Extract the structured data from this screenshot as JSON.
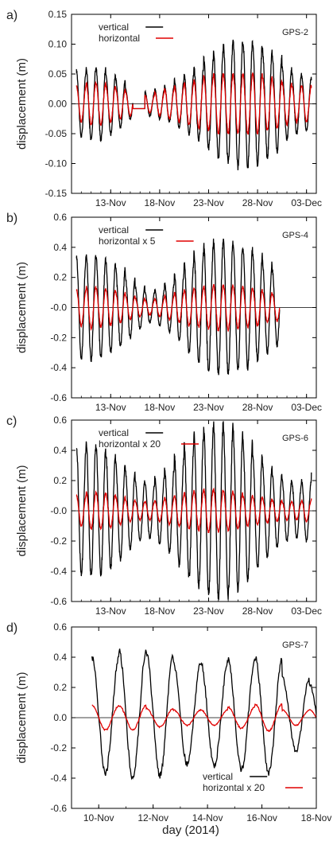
{
  "figure": {
    "xlabel": "day (2014)"
  },
  "chart_data": [
    {
      "type": "line",
      "panel_label": "a)",
      "station": "GPS-2",
      "ylabel": "displacement (m)",
      "ylim": [
        -0.15,
        0.15
      ],
      "yticks": [
        -0.15,
        -0.1,
        -0.05,
        0.0,
        0.05,
        0.1,
        0.15
      ],
      "ytick_labels": [
        "-0.15",
        "-0.10",
        "-0.05",
        "0.00",
        "0.05",
        "0.10",
        "0.15"
      ],
      "xlim": [
        "2014-11-09",
        "2014-12-04"
      ],
      "xticks": [
        "13-Nov",
        "18-Nov",
        "23-Nov",
        "28-Nov",
        "03-Dec"
      ],
      "legend": "top-left",
      "x_start": "2014-11-09T12:00",
      "x_end": "2014-12-03T12:00",
      "gap": [
        "2014-11-15T06:00",
        "2014-11-16T12:00"
      ],
      "cycles_per_day": 1,
      "series": [
        {
          "name": "vertical",
          "color": "#000000",
          "amplitude": [
            0.055,
            0.06,
            0.06,
            0.05,
            0.04,
            0.025,
            0.02,
            0.02,
            0.025,
            0.03,
            0.04,
            0.05,
            0.06,
            0.075,
            0.09,
            0.1,
            0.105,
            0.105,
            0.1,
            0.09,
            0.08,
            0.06,
            0.05,
            0.045,
            0.04
          ],
          "offset": 0.0
        },
        {
          "name": "horizontal",
          "color": "#e00000",
          "amplitude": [
            0.03,
            0.035,
            0.035,
            0.03,
            0.025,
            0.02,
            0.015,
            0.015,
            0.02,
            0.025,
            0.03,
            0.035,
            0.04,
            0.045,
            0.05,
            0.05,
            0.05,
            0.05,
            0.05,
            0.045,
            0.04,
            0.035,
            0.03,
            0.03,
            0.025
          ],
          "offset": 0.0
        }
      ]
    },
    {
      "type": "line",
      "panel_label": "b)",
      "station": "GPS-4",
      "ylabel": "displacement (m)",
      "ylim": [
        -0.6,
        0.6
      ],
      "yticks": [
        -0.6,
        -0.4,
        -0.2,
        0.0,
        0.2,
        0.4,
        0.6
      ],
      "ytick_labels": [
        "-0.6",
        "-0.4",
        "-0.2",
        "-0.0",
        "0.2",
        "0.4",
        "0.6"
      ],
      "xlim": [
        "2014-11-09",
        "2014-12-04"
      ],
      "xticks": [
        "13-Nov",
        "18-Nov",
        "23-Nov",
        "28-Nov",
        "03-Dec"
      ],
      "legend": "top-left",
      "x_start": "2014-11-09T12:00",
      "x_end": "2014-11-30T06:00",
      "gap": null,
      "cycles_per_day": 1,
      "series": [
        {
          "name": "vertical",
          "color": "#000000",
          "amplitude": [
            0.34,
            0.35,
            0.33,
            0.3,
            0.26,
            0.2,
            0.14,
            0.1,
            0.12,
            0.16,
            0.22,
            0.3,
            0.36,
            0.42,
            0.44,
            0.44,
            0.42,
            0.4,
            0.35,
            0.3,
            0.25,
            0.2
          ],
          "offset": 0.0
        },
        {
          "name": "horizontal x 5",
          "color": "#e00000",
          "amplitude": [
            0.12,
            0.14,
            0.13,
            0.12,
            0.1,
            0.08,
            0.06,
            0.05,
            0.06,
            0.08,
            0.1,
            0.12,
            0.13,
            0.14,
            0.15,
            0.15,
            0.14,
            0.13,
            0.12,
            0.1,
            0.09,
            0.08
          ],
          "offset": 0.0
        }
      ]
    },
    {
      "type": "line",
      "panel_label": "c)",
      "station": "GPS-6",
      "ylabel": "displacement (m)",
      "ylim": [
        -0.6,
        0.6
      ],
      "yticks": [
        -0.6,
        -0.4,
        -0.2,
        0.0,
        0.2,
        0.4,
        0.6
      ],
      "ytick_labels": [
        "-0.6",
        "-0.4",
        "-0.2",
        "-0.0",
        "0.2",
        "0.4",
        "0.6"
      ],
      "xlim": [
        "2014-11-09",
        "2014-12-04"
      ],
      "xticks": [
        "13-Nov",
        "18-Nov",
        "23-Nov",
        "28-Nov",
        "03-Dec"
      ],
      "legend": "top-left",
      "x_start": "2014-11-09T12:00",
      "x_end": "2014-12-03T12:00",
      "gap": null,
      "cycles_per_day": 1,
      "series": [
        {
          "name": "vertical",
          "color": "#000000",
          "amplitude": [
            0.42,
            0.44,
            0.42,
            0.38,
            0.32,
            0.26,
            0.2,
            0.18,
            0.22,
            0.28,
            0.36,
            0.44,
            0.5,
            0.55,
            0.57,
            0.56,
            0.52,
            0.46,
            0.38,
            0.3,
            0.24,
            0.2,
            0.18,
            0.2,
            0.26
          ],
          "offset": 0.0
        },
        {
          "name": "horizontal x 20",
          "color": "#e00000",
          "amplitude": [
            0.1,
            0.12,
            0.12,
            0.11,
            0.09,
            0.07,
            0.06,
            0.06,
            0.07,
            0.09,
            0.1,
            0.12,
            0.13,
            0.14,
            0.14,
            0.13,
            0.12,
            0.1,
            0.09,
            0.08,
            0.07,
            0.06,
            0.06,
            0.07,
            0.08
          ],
          "offset": 0.0
        }
      ]
    },
    {
      "type": "line",
      "panel_label": "d)",
      "station": "GPS-7",
      "ylabel": "displacement (m)",
      "ylim": [
        -0.6,
        0.6
      ],
      "yticks": [
        -0.6,
        -0.4,
        -0.2,
        0.0,
        0.2,
        0.4,
        0.6
      ],
      "ytick_labels": [
        "-0.6",
        "-0.4",
        "-0.2",
        "0.0",
        "0.2",
        "0.4",
        "0.6"
      ],
      "xlim": [
        "2014-11-09",
        "2014-11-18"
      ],
      "xticks": [
        "10-Nov",
        "12-Nov",
        "14-Nov",
        "16-Nov",
        "18-Nov"
      ],
      "legend": "bottom-right",
      "x_start": "2014-11-09T18:00",
      "x_end": "2014-11-18T00:00",
      "gap": null,
      "cycles_per_day": 1,
      "series": [
        {
          "name": "vertical",
          "color": "#000000",
          "amplitude": [
            0.38,
            0.42,
            0.4,
            0.33,
            0.34,
            0.36,
            0.38,
            0.24,
            0.2,
            0.2
          ],
          "offset": 0.02
        },
        {
          "name": "horizontal x 20",
          "color": "#e00000",
          "amplitude": [
            0.08,
            0.08,
            0.06,
            0.05,
            0.05,
            0.07,
            0.09,
            0.05,
            0.05,
            0.05
          ],
          "offset": 0.0
        }
      ]
    }
  ]
}
